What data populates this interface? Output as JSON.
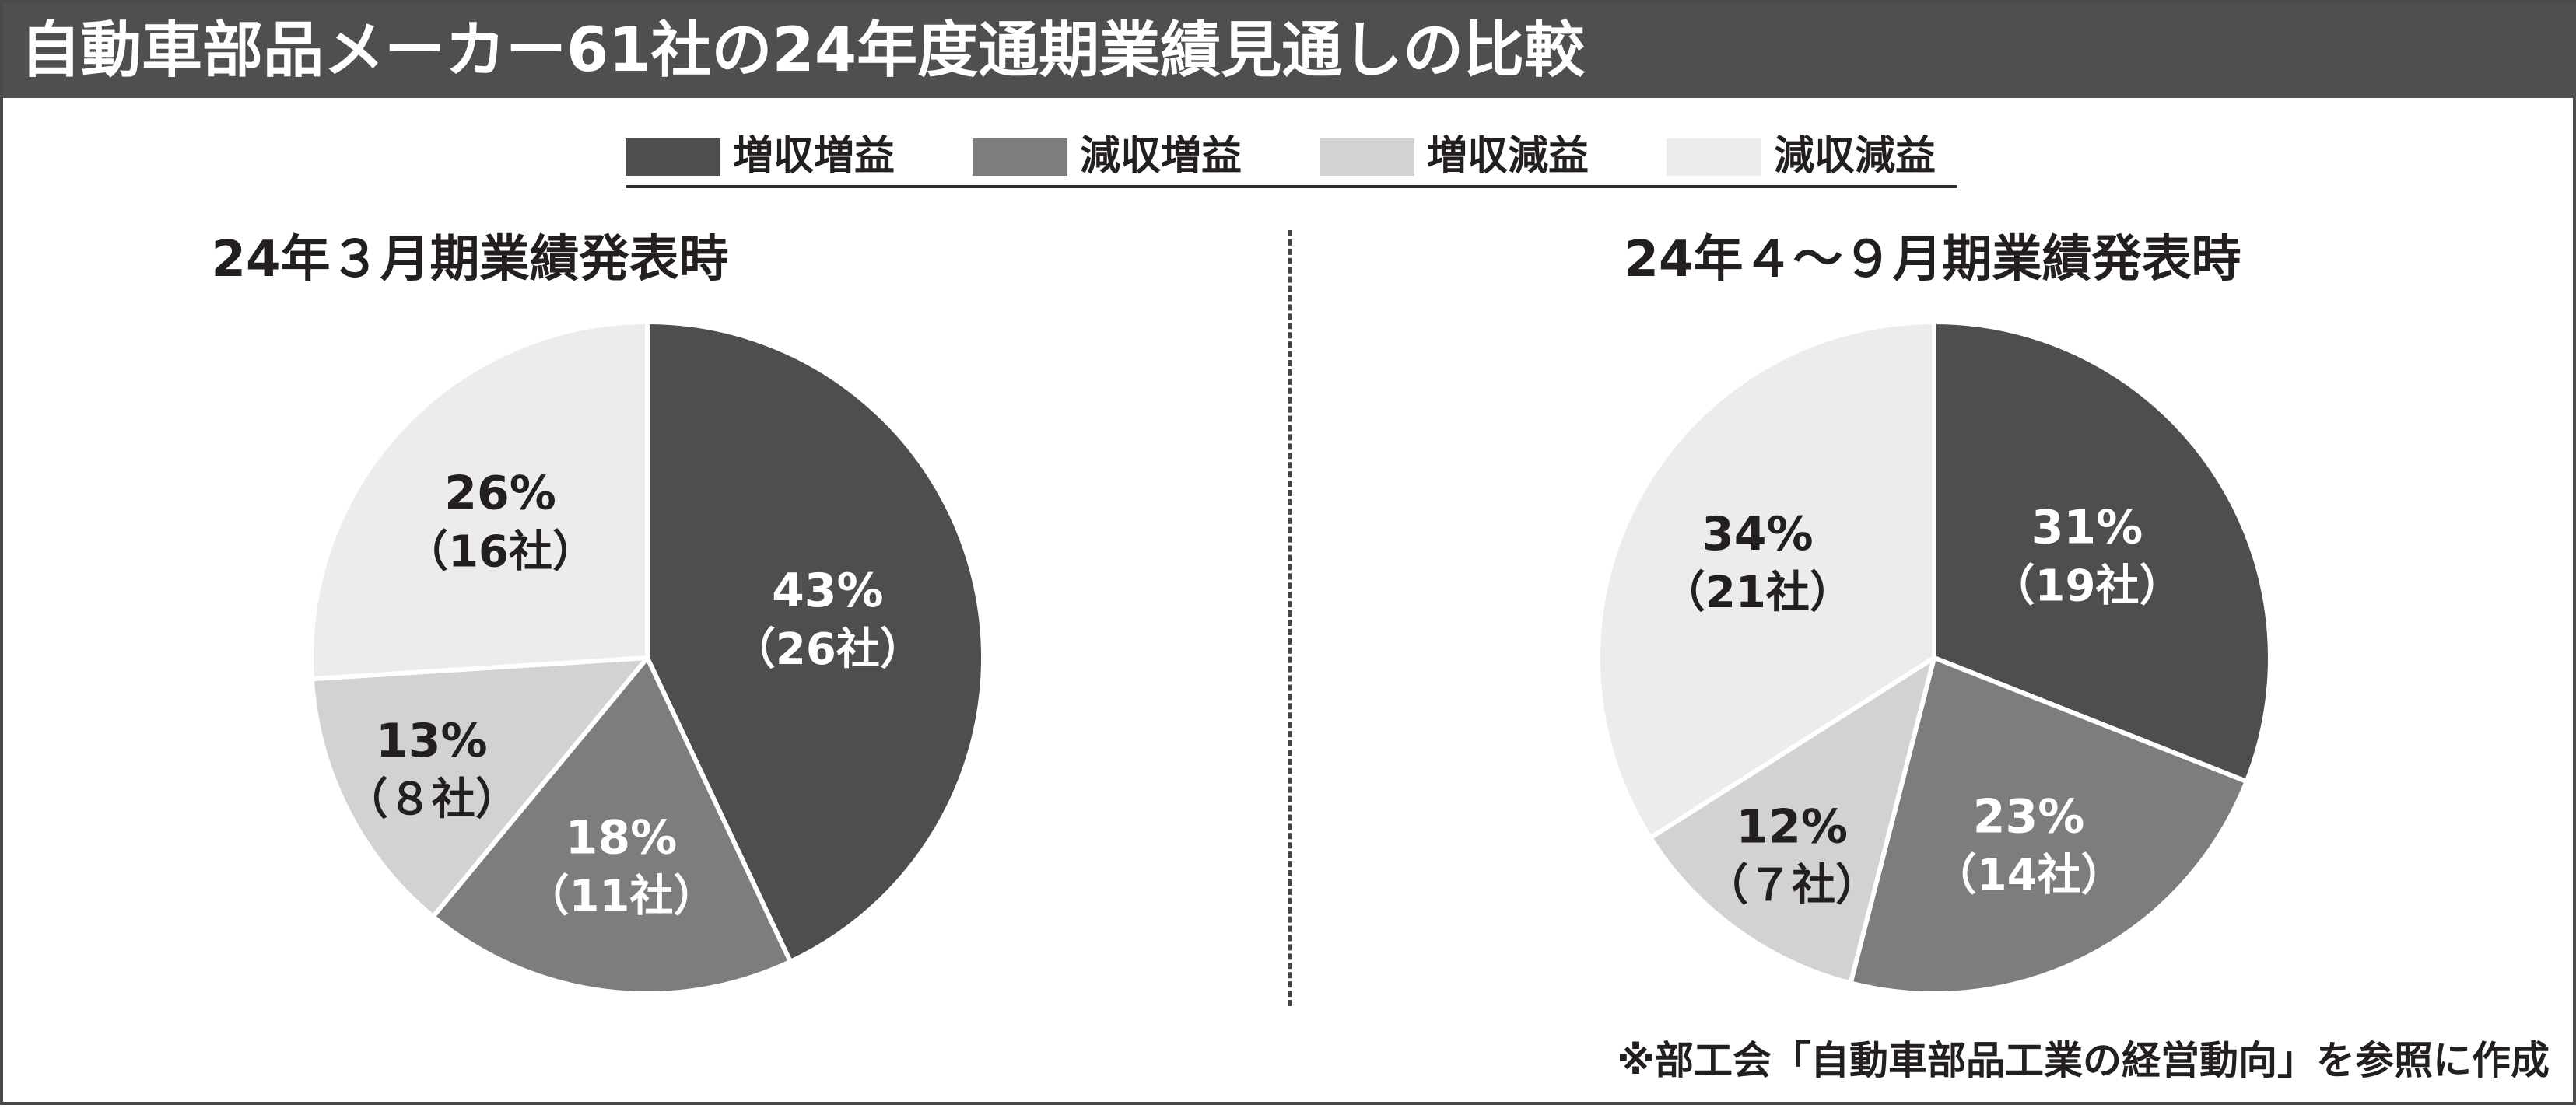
{
  "title": "自動車部品メーカー61社の24年度通期業績見通しの比較",
  "legend": [
    {
      "label": "増収増益",
      "color": "#4f4d50"
    },
    {
      "label": "減収増益",
      "color": "#7d7c7e"
    },
    {
      "label": "増収減益",
      "color": "#d2d1d3"
    },
    {
      "label": "減収減益",
      "color": "#ececed"
    }
  ],
  "source_note": "※部工会「自動車部品工業の経営動向」を参照に作成",
  "chart_data": [
    {
      "type": "pie",
      "title": "24年３月期業績発表時",
      "slices": [
        {
          "category": "増収増益",
          "percent": 43,
          "label": "43%",
          "count_label": "（26社）",
          "color": "#4f4d50",
          "text_color": "#ffffff"
        },
        {
          "category": "減収増益",
          "percent": 18,
          "label": "18%",
          "count_label": "（11社）",
          "color": "#7d7c7e",
          "text_color": "#ffffff"
        },
        {
          "category": "増収減益",
          "percent": 13,
          "label": "13%",
          "count_label": "（８社）",
          "color": "#d2d1d3",
          "text_color": "#231f20"
        },
        {
          "category": "減収減益",
          "percent": 26,
          "label": "26%",
          "count_label": "（16社）",
          "color": "#ececed",
          "text_color": "#231f20"
        }
      ]
    },
    {
      "type": "pie",
      "title": "24年４～９月期業績発表時",
      "slices": [
        {
          "category": "増収増益",
          "percent": 31,
          "label": "31%",
          "count_label": "（19社）",
          "color": "#4f4d50",
          "text_color": "#ffffff"
        },
        {
          "category": "減収増益",
          "percent": 23,
          "label": "23%",
          "count_label": "（14社）",
          "color": "#7d7c7e",
          "text_color": "#ffffff"
        },
        {
          "category": "増収減益",
          "percent": 12,
          "label": "12%",
          "count_label": "（７社）",
          "color": "#d2d1d3",
          "text_color": "#231f20"
        },
        {
          "category": "減収減益",
          "percent": 34,
          "label": "34%",
          "count_label": "（21社）",
          "color": "#ececed",
          "text_color": "#231f20"
        }
      ]
    }
  ]
}
